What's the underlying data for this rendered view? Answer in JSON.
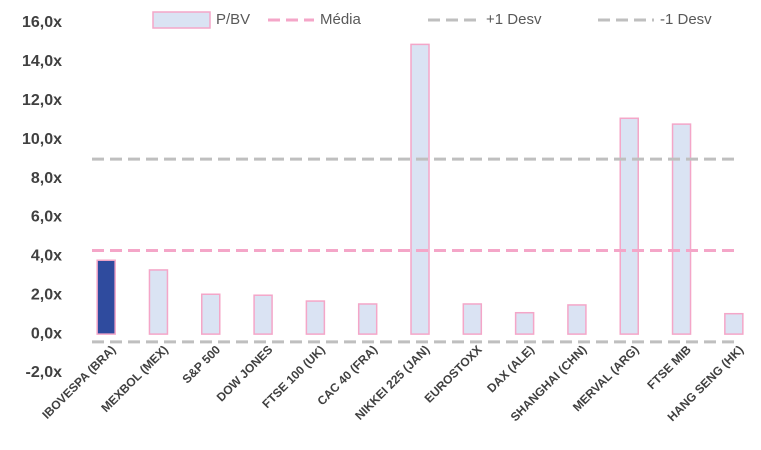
{
  "chart_data": {
    "type": "bar",
    "categories": [
      "IBOVESPA (BRA)",
      "MEXBOL (MEX)",
      "S&P 500",
      "DOW JONES",
      "FTSE 100 (UK)",
      "CAC 40 (FRA)",
      "NIKKEI 225 (JAN)",
      "EUROSTOXX",
      "DAX (ALE)",
      "SHANGHAI (CHN)",
      "MERVAL (ARG)",
      "FTSE MIB",
      "HANG SENG (HK)"
    ],
    "series": [
      {
        "name": "P/BV",
        "color": "#dae3f3",
        "edge_color": "#f4a6c8",
        "colors": [
          "#2f4b9e",
          "#dae3f3",
          "#dae3f3",
          "#dae3f3",
          "#dae3f3",
          "#dae3f3",
          "#dae3f3",
          "#dae3f3",
          "#dae3f3",
          "#dae3f3",
          "#dae3f3",
          "#dae3f3",
          "#dae3f3"
        ],
        "values": [
          3.8,
          3.3,
          2.05,
          2.0,
          1.7,
          1.55,
          14.9,
          1.55,
          1.1,
          1.5,
          11.1,
          10.8,
          1.05
        ]
      }
    ],
    "lines": [
      {
        "name": "Média",
        "color": "#f4a6c8",
        "value": 4.3
      },
      {
        "name": "+1 Desv",
        "color": "#bfbfbf",
        "value": 9.0
      },
      {
        "name": "-1 Desv",
        "color": "#bfbfbf",
        "value": -0.4
      }
    ],
    "ylim": [
      -2,
      16
    ],
    "yticks": [
      {
        "value": -2,
        "label": "-2,0x"
      },
      {
        "value": 0,
        "label": "0,0x"
      },
      {
        "value": 2,
        "label": "2,0x"
      },
      {
        "value": 4,
        "label": "4,0x"
      },
      {
        "value": 6,
        "label": "6,0x"
      },
      {
        "value": 8,
        "label": "8,0x"
      },
      {
        "value": 10,
        "label": "10,0x"
      },
      {
        "value": 12,
        "label": "12,0x"
      },
      {
        "value": 14,
        "label": "14,0x"
      },
      {
        "value": 16,
        "label": "16,0x"
      }
    ]
  }
}
